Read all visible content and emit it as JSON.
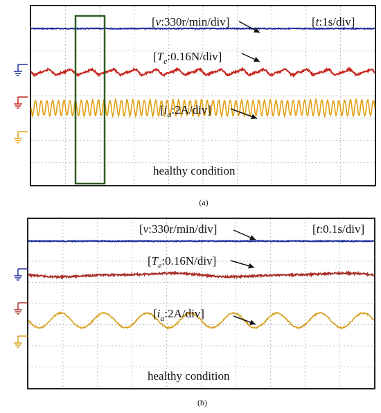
{
  "chart_data": [
    {
      "type": "line",
      "panel": "(a)",
      "scale_labels": {
        "speed": "[v:330r/min/div]",
        "torque": "[Te:0.16N/div]",
        "current": "[ia:2A/div]",
        "time": "[t:1s/div]"
      },
      "annotation": "healthy condition",
      "grid": true,
      "highlight_box": true,
      "series": [
        {
          "key": "speed",
          "color": "#1f2fa0",
          "level_div": 1.0,
          "ripple_div": 0.0,
          "cycles": 0
        },
        {
          "key": "torque",
          "color": "#c8241c",
          "level_div": 2.95,
          "ripple_div": 0.1,
          "cycles": 16
        },
        {
          "key": "current",
          "color": "#e0a010",
          "level_div": 4.55,
          "ripple_div": 0.35,
          "cycles": 60
        }
      ]
    },
    {
      "type": "line",
      "panel": "(b)",
      "scale_labels": {
        "speed": "[v:330r/min/div]",
        "torque": "[Te:0.16N/div]",
        "current": "[ia:2A/div]",
        "time": "[t:0.1s/div]"
      },
      "annotation": "healthy condition",
      "grid": true,
      "highlight_box": false,
      "series": [
        {
          "key": "speed",
          "color": "#1f2fa0",
          "level_div": 1.05,
          "ripple_div": 0.0,
          "cycles": 0
        },
        {
          "key": "torque",
          "color": "#a8302a",
          "level_div": 2.65,
          "ripple_div": 0.07,
          "cycles": 2
        },
        {
          "key": "current",
          "color": "#d9a020",
          "level_div": 4.8,
          "ripple_div": 0.35,
          "cycles": 8
        }
      ]
    }
  ],
  "captions": {
    "a": "(a)",
    "b": "(b)"
  }
}
